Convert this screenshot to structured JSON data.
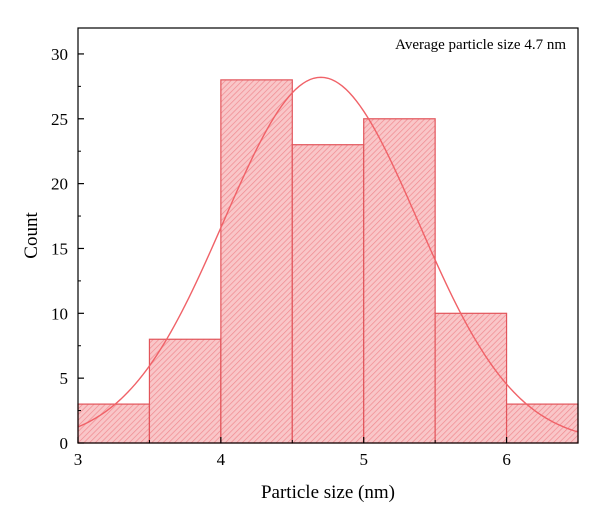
{
  "chart_data": {
    "type": "bar",
    "subtype": "histogram",
    "bin_edges": [
      3.0,
      3.5,
      4.0,
      4.5,
      5.0,
      5.5,
      6.0,
      6.5
    ],
    "values": [
      3,
      8,
      28,
      23,
      25,
      10,
      3
    ],
    "fit_curve": {
      "type": "gaussian",
      "mean": 4.7,
      "sd": 0.68,
      "peak": 28.2
    },
    "xlabel": "Particle size (nm)",
    "ylabel": "Count",
    "xlim": [
      3,
      6.5
    ],
    "ylim": [
      0,
      32
    ],
    "xticks": [
      3,
      4,
      5,
      6
    ],
    "yticks": [
      0,
      5,
      10,
      15,
      20,
      25,
      30
    ],
    "annotation": "Average particle size 4.7 nm",
    "grid": false,
    "colors": {
      "bar_fill": "#f9c6c8",
      "bar_edge": "#e2555b",
      "hatch": "#f08a90",
      "curve": "#f06268"
    }
  }
}
